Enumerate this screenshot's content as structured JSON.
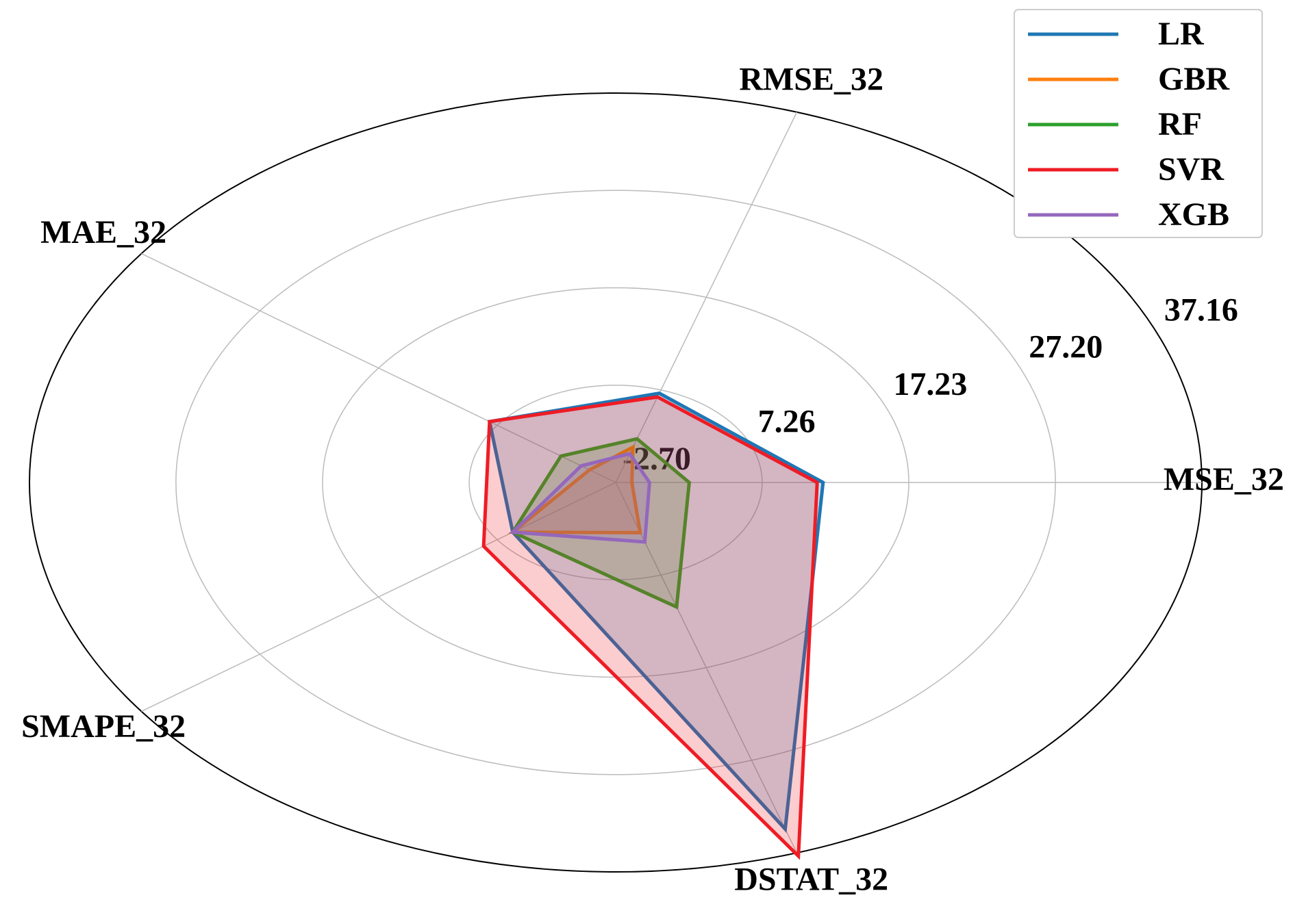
{
  "chart_data": {
    "type": "radar",
    "categories": [
      "MSE_32",
      "RMSE_32",
      "MAE_32",
      "SMAPE_32",
      "DSTAT_32"
    ],
    "ylim": [
      -2.7,
      37.16
    ],
    "yticks": [
      {
        "value": -2.7,
        "label": "-2.70"
      },
      7.26,
      17.23,
      {
        "value": 27.2,
        "label": "27.20"
      },
      37.16
    ],
    "grid": true,
    "legend": "upper right",
    "series": [
      {
        "name": "LR",
        "color": "#1f77b4",
        "values": [
          11.4,
          6.9,
          7.9,
          5.95,
          34.6
        ]
      },
      {
        "name": "GBR",
        "color": "#ff7f0e",
        "values": [
          -1.6,
          1.1,
          -0.5,
          5.95,
          2.7
        ]
      },
      {
        "name": "RF",
        "color": "#2ca02c",
        "values": [
          2.3,
          2.0,
          1.9,
          5.95,
          10.7
        ]
      },
      {
        "name": "SVR",
        "color": "#ee1c25",
        "values": [
          11.0,
          6.5,
          7.9,
          8.4,
          37.5
        ]
      },
      {
        "name": "XGB",
        "color": "#9467bd",
        "values": [
          -0.4,
          0.4,
          0.2,
          5.95,
          3.7
        ]
      }
    ]
  }
}
